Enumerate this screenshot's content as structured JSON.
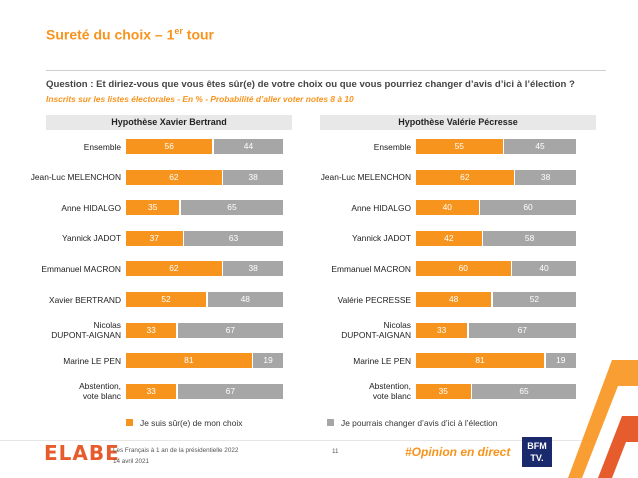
{
  "page": {
    "title_main": "Sureté du choix – 1",
    "title_sup": "er",
    "title_tail": " tour",
    "question": "Question : Et diriez-vous que vous êtes sûr(e) de votre choix ou que vous pourriez changer d’avis d’ici à l’élection ?",
    "subtitle": "Inscrits sur les listes électorales - En % - Probabilité d’aller voter notes 8 à 10",
    "legend": [
      "Je suis sûr(e) de mon choix",
      "Je pourrais changer d’avis d’ici à l’élection"
    ],
    "colors": {
      "sure": "#f7941d",
      "change": "#a6a6a6",
      "accent": "#f7941d"
    },
    "footer": {
      "logo": "ELABE",
      "line1": "Les Français à 1 an de la présidentielle 2022",
      "line2": "14 avril 2021",
      "page_number": "11",
      "hashtag": "#Opinion en direct",
      "bfm_line1": "BFM",
      "bfm_line2": "TV."
    }
  },
  "chart_data": [
    {
      "type": "bar",
      "stacked": true,
      "orientation": "horizontal",
      "title": "Hypothèse Xavier Bertrand",
      "categories": [
        "Ensemble",
        "Jean-Luc MELENCHON",
        "Anne HIDALGO",
        "Yannick JADOT",
        "Emmanuel MACRON",
        "Xavier BERTRAND",
        "Nicolas DUPONT-AIGNAN",
        "Marine LE PEN",
        "Abstention, vote blanc"
      ],
      "series": [
        {
          "name": "Je suis sûr(e) de mon choix",
          "values": [
            56,
            62,
            35,
            37,
            62,
            52,
            33,
            81,
            33
          ]
        },
        {
          "name": "Je pourrais changer d’avis d’ici à l’élection",
          "values": [
            44,
            38,
            65,
            63,
            38,
            48,
            67,
            19,
            67
          ]
        }
      ],
      "xlim": [
        0,
        100
      ],
      "legend_position": "bottom"
    },
    {
      "type": "bar",
      "stacked": true,
      "orientation": "horizontal",
      "title": "Hypothèse Valérie Pécresse",
      "categories": [
        "Ensemble",
        "Jean-Luc MELENCHON",
        "Anne HIDALGO",
        "Yannick JADOT",
        "Emmanuel MACRON",
        "Valérie PECRESSE",
        "Nicolas DUPONT-AIGNAN",
        "Marine LE PEN",
        "Abstention, vote blanc"
      ],
      "series": [
        {
          "name": "Je suis sûr(e) de mon choix",
          "values": [
            55,
            62,
            40,
            42,
            60,
            48,
            33,
            81,
            35
          ]
        },
        {
          "name": "Je pourrais changer d’avis d’ici à l’élection",
          "values": [
            45,
            38,
            60,
            58,
            40,
            52,
            67,
            19,
            65
          ]
        }
      ],
      "xlim": [
        0,
        100
      ],
      "legend_position": "bottom"
    }
  ]
}
